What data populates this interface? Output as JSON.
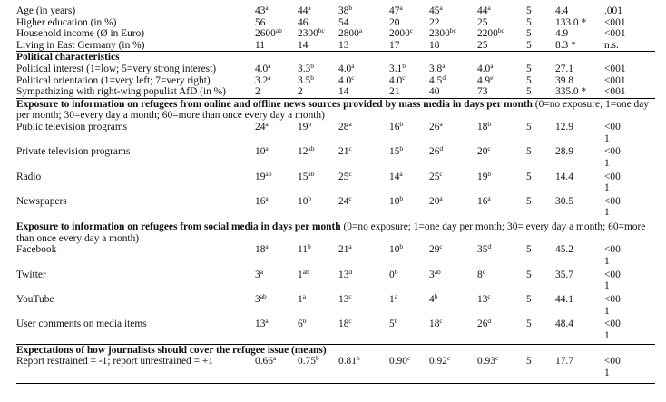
{
  "rows_top": [
    {
      "label": "Age (in years)",
      "c": [
        [
          "43",
          "a"
        ],
        [
          "44",
          "a"
        ],
        [
          "38",
          "b"
        ],
        [
          "47",
          "a"
        ],
        [
          "45",
          "a"
        ],
        [
          "44",
          "a"
        ]
      ],
      "df": "5",
      "stat": "4.4",
      "p": ".001"
    },
    {
      "label": "Higher education (in %)",
      "c": [
        [
          "56",
          ""
        ],
        [
          "46",
          ""
        ],
        [
          "54",
          ""
        ],
        [
          "20",
          ""
        ],
        [
          "22",
          ""
        ],
        [
          "25",
          ""
        ]
      ],
      "df": "5",
      "stat": "133.0 *",
      "p": "<001"
    },
    {
      "label": "Household income (Ø in Euro)",
      "c": [
        [
          "2600",
          "ab"
        ],
        [
          "2300",
          "bc"
        ],
        [
          "2800",
          "a"
        ],
        [
          "2000",
          "c"
        ],
        [
          "2300",
          "bc"
        ],
        [
          "2200",
          "bc"
        ]
      ],
      "df": "5",
      "stat": "4.9",
      "p": "<001"
    },
    {
      "label": "Living in East Germany (in %)",
      "c": [
        [
          "11",
          ""
        ],
        [
          "14",
          ""
        ],
        [
          "13",
          ""
        ],
        [
          "17",
          ""
        ],
        [
          "18",
          ""
        ],
        [
          "25",
          ""
        ]
      ],
      "df": "5",
      "stat": "8.3 *",
      "p": "n.s."
    }
  ],
  "section_political": {
    "title": "Political characteristics",
    "rows": [
      {
        "label": "Political interest (1=low; 5=very strong interest)",
        "c": [
          [
            "4.0",
            "a"
          ],
          [
            "3.3",
            "b"
          ],
          [
            "4.0",
            "a"
          ],
          [
            "3.1",
            "b"
          ],
          [
            "3.8",
            "a"
          ],
          [
            "4.0",
            "a"
          ]
        ],
        "df": "5",
        "stat": "27.1",
        "p": "<001"
      },
      {
        "label": "Political orientation (1=very left; 7=very right)",
        "c": [
          [
            "3.2",
            "a"
          ],
          [
            "3.5",
            "b"
          ],
          [
            "4.0",
            "c"
          ],
          [
            "4.0",
            "c"
          ],
          [
            "4.5",
            "d"
          ],
          [
            "4.9",
            "e"
          ]
        ],
        "df": "5",
        "stat": "39.8",
        "p": "<001"
      },
      {
        "label": "Sympathizing with right-wing populist AfD (in %)",
        "c": [
          [
            "2",
            ""
          ],
          [
            "2",
            ""
          ],
          [
            "14",
            ""
          ],
          [
            "21",
            ""
          ],
          [
            "40",
            ""
          ],
          [
            "73",
            ""
          ]
        ],
        "df": "5",
        "stat": "335.0 *",
        "p": "<001"
      }
    ]
  },
  "section_mass": {
    "title": "Exposure to information on refugees from online and offline news sources provided by mass media in days per month",
    "note": " (0=no exposure; 1=one day per month; 30=every day a month; 60=more than once every day a month)",
    "rows": [
      {
        "label": "Public television programs",
        "c": [
          [
            "24",
            "a"
          ],
          [
            "19",
            "b"
          ],
          [
            "28",
            "a"
          ],
          [
            "16",
            "b"
          ],
          [
            "26",
            "a"
          ],
          [
            "18",
            "b"
          ]
        ],
        "df": "5",
        "stat": "12.9",
        "p": "<001"
      },
      {
        "label": "Private television programs",
        "c": [
          [
            "10",
            "a"
          ],
          [
            "12",
            "ab"
          ],
          [
            "21",
            "c"
          ],
          [
            "15",
            "b"
          ],
          [
            "26",
            "d"
          ],
          [
            "20",
            "c"
          ]
        ],
        "df": "5",
        "stat": "28.9",
        "p": "<001"
      },
      {
        "label": "Radio",
        "c": [
          [
            "19",
            "ab"
          ],
          [
            "15",
            "ab"
          ],
          [
            "25",
            "c"
          ],
          [
            "14",
            "a"
          ],
          [
            "25",
            "c"
          ],
          [
            "19",
            "b"
          ]
        ],
        "df": "5",
        "stat": "14.4",
        "p": "<001"
      },
      {
        "label": "Newspapers",
        "c": [
          [
            "16",
            "a"
          ],
          [
            "10",
            "b"
          ],
          [
            "24",
            "c"
          ],
          [
            "10",
            "b"
          ],
          [
            "20",
            "a"
          ],
          [
            "16",
            "a"
          ]
        ],
        "df": "5",
        "stat": "30.5",
        "p": "<001"
      }
    ]
  },
  "section_social": {
    "title": "Exposure to information on refugees from social media in days per month",
    "note": " (0=no exposure; 1=one day per month; 30= every day a month; 60=more than once every day a month)",
    "rows": [
      {
        "label": "Facebook",
        "c": [
          [
            "18",
            "a"
          ],
          [
            "11",
            "b"
          ],
          [
            "21",
            "a"
          ],
          [
            "10",
            "b"
          ],
          [
            "29",
            "c"
          ],
          [
            "35",
            "d"
          ]
        ],
        "df": "5",
        "stat": "45.2",
        "p": "<001"
      },
      {
        "label": "Twitter",
        "c": [
          [
            "3",
            "a"
          ],
          [
            "1",
            "ab"
          ],
          [
            "13",
            "d"
          ],
          [
            "0",
            "b"
          ],
          [
            "3",
            "ab"
          ],
          [
            "8",
            "c"
          ]
        ],
        "df": "5",
        "stat": "35.7",
        "p": "<001"
      },
      {
        "label": "YouTube",
        "c": [
          [
            "3",
            "ab"
          ],
          [
            "1",
            "a"
          ],
          [
            "13",
            "c"
          ],
          [
            "1",
            "a"
          ],
          [
            "4",
            "b"
          ],
          [
            "13",
            "c"
          ]
        ],
        "df": "5",
        "stat": "44.1",
        "p": "<001"
      },
      {
        "label": "User comments on media items",
        "c": [
          [
            "13",
            "a"
          ],
          [
            "6",
            "b"
          ],
          [
            "18",
            "c"
          ],
          [
            "5",
            "b"
          ],
          [
            "18",
            "c"
          ],
          [
            "26",
            "d"
          ]
        ],
        "df": "5",
        "stat": "48.4",
        "p": "<001"
      }
    ]
  },
  "section_expect": {
    "title": "Expectations of how journalists should cover the refugee issue (means)",
    "rows": [
      {
        "label": "Report restrained = -1;  report  unrestrained = +1",
        "c": [
          [
            "0.66",
            "a"
          ],
          [
            "0.75",
            "b"
          ],
          [
            "0.81",
            "b"
          ],
          [
            "0.90",
            "c"
          ],
          [
            "0.92",
            "c"
          ],
          [
            "0.93",
            "c"
          ]
        ],
        "df": "5",
        "stat": "17.7",
        "p": "<001"
      }
    ]
  }
}
